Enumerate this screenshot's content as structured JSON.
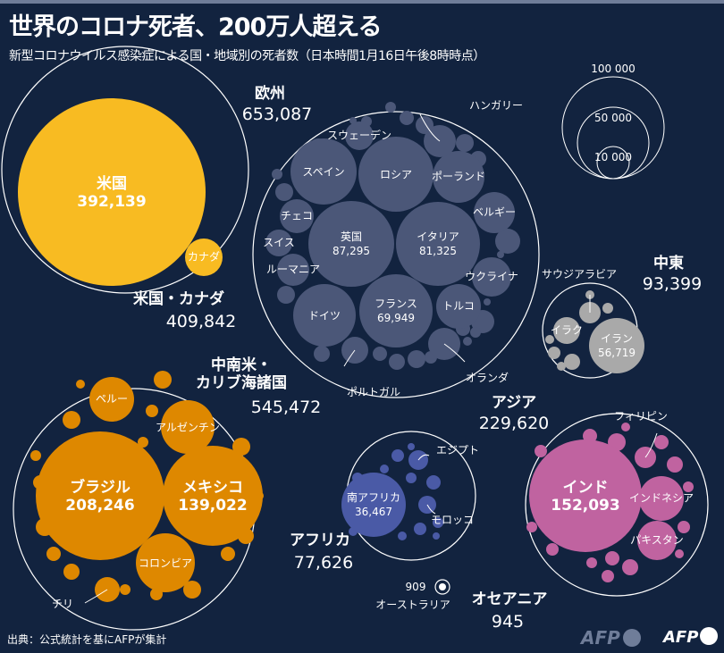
{
  "title": "世界のコロナ死者、200万人超える",
  "subtitle": "新型コロナウイルス感染症による国・地域別の死者数（日本時間1月16日午後8時時点）",
  "source": "出典：公式統計を基にAFPが集計",
  "logos": {
    "afp_bb": "AFP BB News",
    "afp": "AFP"
  },
  "chart_data": {
    "type": "bubble",
    "title": "世界のコロナ死者、200万人超える",
    "legend": {
      "placement": "top-right",
      "values": [
        "100 000",
        "50 000",
        "10 000"
      ]
    },
    "colors": {
      "north_america": "#f8bb22",
      "europe": "#4b5778",
      "middle_east": "#a9a9a9",
      "latin_america": "#de8800",
      "africa": "#4a5aa6",
      "asia": "#c063a0",
      "oceania": "#ffffff"
    },
    "regions": [
      {
        "id": "north_america",
        "name": "米国・カナダ",
        "total": "409,842",
        "countries": [
          {
            "name": "米国",
            "value": "392,139"
          },
          {
            "name": "カナダ"
          }
        ]
      },
      {
        "id": "europe",
        "name": "欧州",
        "total": "653,087",
        "countries": [
          {
            "name": "英国",
            "value": "87,295"
          },
          {
            "name": "イタリア",
            "value": "81,325"
          },
          {
            "name": "フランス",
            "value": "69,949"
          },
          {
            "name": "ロシア"
          },
          {
            "name": "スペイン"
          },
          {
            "name": "ポーランド"
          },
          {
            "name": "ドイツ"
          },
          {
            "name": "トルコ"
          },
          {
            "name": "ベルギー"
          },
          {
            "name": "ウクライナ"
          },
          {
            "name": "チェコ"
          },
          {
            "name": "スイス"
          },
          {
            "name": "ルーマニア"
          },
          {
            "name": "スウェーデン"
          },
          {
            "name": "ハンガリー"
          },
          {
            "name": "オランダ"
          },
          {
            "name": "ポルトガル"
          }
        ]
      },
      {
        "id": "middle_east",
        "name": "中東",
        "total": "93,399",
        "countries": [
          {
            "name": "イラン",
            "value": "56,719"
          },
          {
            "name": "イラク"
          },
          {
            "name": "サウジアラビア"
          }
        ]
      },
      {
        "id": "latin_america",
        "name": "中南米・",
        "name2": "カリブ海諸国",
        "total": "545,472",
        "countries": [
          {
            "name": "ブラジル",
            "value": "208,246"
          },
          {
            "name": "メキシコ",
            "value": "139,022"
          },
          {
            "name": "コロンビア"
          },
          {
            "name": "アルゼンチン"
          },
          {
            "name": "ペルー"
          },
          {
            "name": "チリ"
          }
        ]
      },
      {
        "id": "africa",
        "name": "アフリカ",
        "total": "77,626",
        "countries": [
          {
            "name": "南アフリカ",
            "value": "36,467"
          },
          {
            "name": "エジプト"
          },
          {
            "name": "モロッコ"
          }
        ]
      },
      {
        "id": "asia",
        "name": "アジア",
        "total": "229,620",
        "countries": [
          {
            "name": "インド",
            "value": "152,093"
          },
          {
            "name": "インドネシア"
          },
          {
            "name": "パキスタン"
          },
          {
            "name": "フィリピン"
          }
        ]
      },
      {
        "id": "oceania",
        "name": "オセアニア",
        "total": "945",
        "countries": [
          {
            "name": "オーストラリア",
            "value": "909"
          }
        ]
      }
    ]
  }
}
